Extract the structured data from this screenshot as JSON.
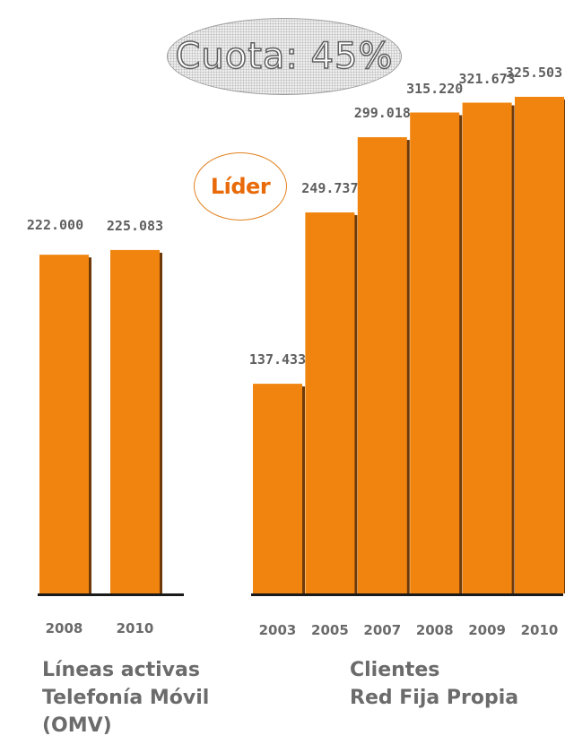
{
  "badges": {
    "cuota": "Cuota: 45%",
    "lider": "Líder"
  },
  "colors": {
    "bar": "#f0840e",
    "bar_shadow": "#6e3a0a",
    "baseline": "#1a1a1a"
  },
  "chart_data": [
    {
      "type": "bar",
      "caption": "Líneas activas\nTelefonía Móvil\n(OMV)",
      "categories": [
        "2008",
        "2010"
      ],
      "values": [
        222000,
        225083
      ],
      "value_labels": [
        "222.000",
        "225.083"
      ],
      "ylim": [
        0,
        325503
      ],
      "grid": false
    },
    {
      "type": "bar",
      "caption": "Clientes\nRed Fija Propia",
      "categories": [
        "2003",
        "2005",
        "2007",
        "2008",
        "2009",
        "2010"
      ],
      "values": [
        137433,
        249737,
        299018,
        315220,
        321673,
        325503
      ],
      "value_labels": [
        "137.433",
        "249.737",
        "299.018",
        "315.220",
        "321.673",
        "325.503"
      ],
      "ylim": [
        0,
        325503
      ],
      "grid": false
    }
  ]
}
